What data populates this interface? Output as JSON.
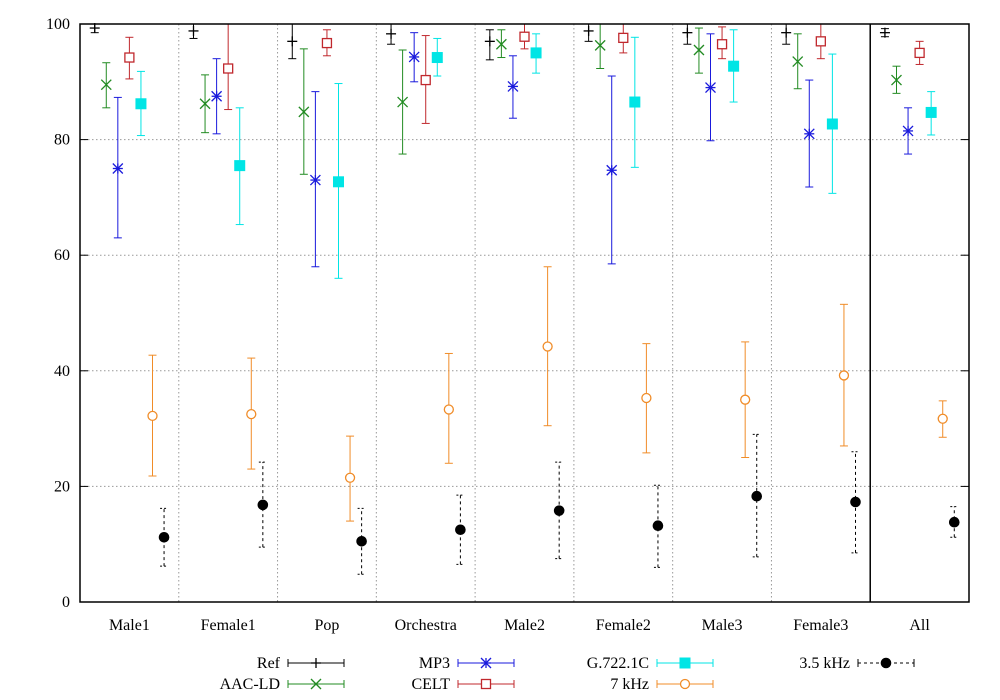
{
  "chart_data": {
    "type": "scatter",
    "title": "",
    "xlabel": "",
    "ylabel": "",
    "categories": [
      "Male1",
      "Female1",
      "Pop",
      "Orchestra",
      "Male2",
      "Female2",
      "Male3",
      "Female3",
      "All"
    ],
    "ylim": [
      0,
      100
    ],
    "yticks": [
      "0",
      "20",
      "40",
      "60",
      "80",
      "100"
    ],
    "grid": true,
    "legend_position": "bottom",
    "series": [
      {
        "name": "Ref",
        "marker": "plus",
        "color": "#000000",
        "dashed": false,
        "values": [
          99.3,
          98.8,
          97.0,
          98.3,
          97.0,
          98.8,
          98.5,
          98.5,
          98.5
        ],
        "lower": [
          98.5,
          97.5,
          94.0,
          96.5,
          93.8,
          97.0,
          96.5,
          96.5,
          97.8
        ],
        "upper": [
          100,
          100,
          100,
          100,
          99.0,
          100,
          100,
          100,
          99.2
        ]
      },
      {
        "name": "AAC-LD",
        "marker": "x",
        "color": "#228b22",
        "dashed": false,
        "values": [
          89.5,
          86.2,
          84.8,
          86.5,
          96.5,
          96.3,
          95.5,
          93.5,
          90.3
        ],
        "lower": [
          85.5,
          81.2,
          74.0,
          77.5,
          94.2,
          92.3,
          91.5,
          88.8,
          88.0
        ],
        "upper": [
          93.3,
          91.2,
          95.7,
          95.5,
          99.0,
          100,
          99.3,
          98.3,
          92.7
        ]
      },
      {
        "name": "MP3",
        "marker": "asterisk",
        "color": "#1a1adc",
        "dashed": false,
        "values": [
          75.0,
          87.5,
          73.0,
          94.3,
          89.2,
          74.7,
          89.0,
          81.0,
          81.5
        ],
        "lower": [
          63.0,
          81.0,
          58.0,
          90.0,
          83.7,
          58.5,
          79.8,
          71.8,
          77.5
        ],
        "upper": [
          87.3,
          94.0,
          88.3,
          98.5,
          94.5,
          91.0,
          98.3,
          90.3,
          85.5
        ]
      },
      {
        "name": "CELT",
        "marker": "square-open",
        "color": "#c0282d",
        "dashed": false,
        "values": [
          94.2,
          92.3,
          96.7,
          90.3,
          97.8,
          97.6,
          96.5,
          97.0,
          95.0
        ],
        "lower": [
          90.5,
          85.2,
          94.5,
          82.8,
          95.7,
          95.0,
          94.0,
          94.0,
          93.0
        ],
        "upper": [
          97.7,
          100,
          99.0,
          98.0,
          100,
          100,
          99.5,
          100,
          97.0
        ]
      },
      {
        "name": "G.722.1C",
        "marker": "square-filled",
        "color": "#00e5e5",
        "dashed": false,
        "values": [
          86.2,
          75.5,
          72.7,
          94.2,
          95.0,
          86.5,
          92.7,
          82.7,
          84.7
        ],
        "lower": [
          80.7,
          65.3,
          56.0,
          91.0,
          91.5,
          75.2,
          86.5,
          70.7,
          80.8
        ],
        "upper": [
          91.8,
          85.5,
          89.7,
          97.5,
          98.3,
          97.7,
          99.0,
          94.8,
          88.3
        ]
      },
      {
        "name": "7 kHz",
        "marker": "circle-open",
        "color": "#f08c28",
        "dashed": false,
        "values": [
          32.2,
          32.5,
          21.5,
          33.3,
          44.2,
          35.3,
          35.0,
          39.2,
          31.7
        ],
        "lower": [
          21.8,
          23.0,
          14.0,
          24.0,
          30.5,
          25.8,
          25.0,
          27.0,
          28.5
        ],
        "upper": [
          42.7,
          42.2,
          28.7,
          43.0,
          58.0,
          44.7,
          45.0,
          51.5,
          34.8
        ]
      },
      {
        "name": "3.5 kHz",
        "marker": "circle-filled",
        "color": "#000000",
        "dashed": true,
        "values": [
          11.2,
          16.8,
          10.5,
          12.5,
          15.8,
          13.2,
          18.3,
          17.3,
          13.8
        ],
        "lower": [
          6.2,
          9.5,
          4.8,
          6.5,
          7.5,
          6.0,
          7.8,
          8.5,
          11.2
        ],
        "upper": [
          16.2,
          24.2,
          16.2,
          18.5,
          24.2,
          20.2,
          29.0,
          26.0,
          16.5
        ]
      }
    ]
  }
}
